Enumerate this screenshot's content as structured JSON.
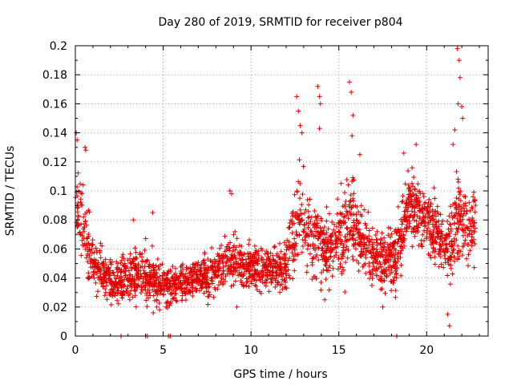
{
  "chart_data": {
    "type": "scatter",
    "title": "Day 280 of 2019, SRMTID for receiver p804",
    "xlabel": "GPS time / hours",
    "ylabel": "SRMTID / TECUs",
    "xlim": [
      0,
      23.5
    ],
    "ylim": [
      0,
      0.2
    ],
    "grid": true,
    "marker": "+",
    "color": "#e00000",
    "x_ticks": [
      0,
      5,
      10,
      15,
      20
    ],
    "x_tick_labels": [
      "0",
      "5",
      "10",
      "15",
      "20"
    ],
    "y_ticks": [
      0,
      0.02,
      0.04,
      0.06,
      0.08,
      0.1,
      0.12,
      0.14,
      0.16,
      0.18,
      0.2
    ],
    "y_tick_labels": [
      "0",
      "0.02",
      "0.04",
      "0.06",
      "0.08",
      "0.1",
      "0.12",
      "0.14",
      "0.16",
      "0.18",
      "0.2"
    ],
    "envelope": [
      {
        "x": 0.0,
        "mean": 0.09,
        "spread": 0.035
      },
      {
        "x": 0.5,
        "mean": 0.07,
        "spread": 0.025
      },
      {
        "x": 1.0,
        "mean": 0.05,
        "spread": 0.015
      },
      {
        "x": 2.0,
        "mean": 0.038,
        "spread": 0.012
      },
      {
        "x": 3.0,
        "mean": 0.04,
        "spread": 0.015
      },
      {
        "x": 4.0,
        "mean": 0.042,
        "spread": 0.017
      },
      {
        "x": 5.0,
        "mean": 0.034,
        "spread": 0.012
      },
      {
        "x": 6.0,
        "mean": 0.036,
        "spread": 0.013
      },
      {
        "x": 7.0,
        "mean": 0.04,
        "spread": 0.012
      },
      {
        "x": 8.0,
        "mean": 0.045,
        "spread": 0.015
      },
      {
        "x": 9.0,
        "mean": 0.052,
        "spread": 0.015
      },
      {
        "x": 10.0,
        "mean": 0.048,
        "spread": 0.013
      },
      {
        "x": 11.0,
        "mean": 0.045,
        "spread": 0.013
      },
      {
        "x": 12.0,
        "mean": 0.05,
        "spread": 0.015
      },
      {
        "x": 12.7,
        "mean": 0.08,
        "spread": 0.03
      },
      {
        "x": 13.5,
        "mean": 0.07,
        "spread": 0.025
      },
      {
        "x": 14.2,
        "mean": 0.06,
        "spread": 0.02
      },
      {
        "x": 15.0,
        "mean": 0.065,
        "spread": 0.025
      },
      {
        "x": 15.7,
        "mean": 0.08,
        "spread": 0.03
      },
      {
        "x": 16.5,
        "mean": 0.06,
        "spread": 0.02
      },
      {
        "x": 17.5,
        "mean": 0.05,
        "spread": 0.018
      },
      {
        "x": 18.3,
        "mean": 0.055,
        "spread": 0.02
      },
      {
        "x": 19.0,
        "mean": 0.09,
        "spread": 0.02
      },
      {
        "x": 20.0,
        "mean": 0.08,
        "spread": 0.02
      },
      {
        "x": 21.0,
        "mean": 0.06,
        "spread": 0.02
      },
      {
        "x": 21.8,
        "mean": 0.08,
        "spread": 0.03
      },
      {
        "x": 22.8,
        "mean": 0.075,
        "spread": 0.02
      }
    ],
    "density_per_hour": 110,
    "spikes": [
      {
        "x": 0.05,
        "y": 0.14
      },
      {
        "x": 0.1,
        "y": 0.135
      },
      {
        "x": 0.55,
        "y": 0.13
      },
      {
        "x": 0.6,
        "y": 0.128
      },
      {
        "x": 12.6,
        "y": 0.165
      },
      {
        "x": 12.7,
        "y": 0.155
      },
      {
        "x": 12.8,
        "y": 0.145
      },
      {
        "x": 12.9,
        "y": 0.14
      },
      {
        "x": 13.8,
        "y": 0.172
      },
      {
        "x": 13.9,
        "y": 0.165
      },
      {
        "x": 13.95,
        "y": 0.16
      },
      {
        "x": 13.9,
        "y": 0.143
      },
      {
        "x": 15.6,
        "y": 0.175
      },
      {
        "x": 15.7,
        "y": 0.168
      },
      {
        "x": 15.8,
        "y": 0.152
      },
      {
        "x": 15.75,
        "y": 0.138
      },
      {
        "x": 16.2,
        "y": 0.125
      },
      {
        "x": 18.7,
        "y": 0.126
      },
      {
        "x": 19.4,
        "y": 0.132
      },
      {
        "x": 21.75,
        "y": 0.198
      },
      {
        "x": 21.85,
        "y": 0.19
      },
      {
        "x": 21.9,
        "y": 0.178
      },
      {
        "x": 21.8,
        "y": 0.16
      },
      {
        "x": 22.0,
        "y": 0.158
      },
      {
        "x": 22.05,
        "y": 0.15
      },
      {
        "x": 21.6,
        "y": 0.142
      },
      {
        "x": 21.5,
        "y": 0.132
      },
      {
        "x": 8.8,
        "y": 0.1
      },
      {
        "x": 8.9,
        "y": 0.098
      },
      {
        "x": 4.4,
        "y": 0.085
      },
      {
        "x": 3.3,
        "y": 0.08
      }
    ],
    "dips": [
      {
        "x": 21.3,
        "y": 0.007
      },
      {
        "x": 21.2,
        "y": 0.015
      },
      {
        "x": 17.5,
        "y": 0.02
      },
      {
        "x": 14.2,
        "y": 0.025
      },
      {
        "x": 9.2,
        "y": 0.02
      },
      {
        "x": 4.8,
        "y": 0.018
      }
    ],
    "zero_points": [
      2.6,
      4.0,
      4.1,
      5.3,
      5.4,
      18.3
    ]
  }
}
